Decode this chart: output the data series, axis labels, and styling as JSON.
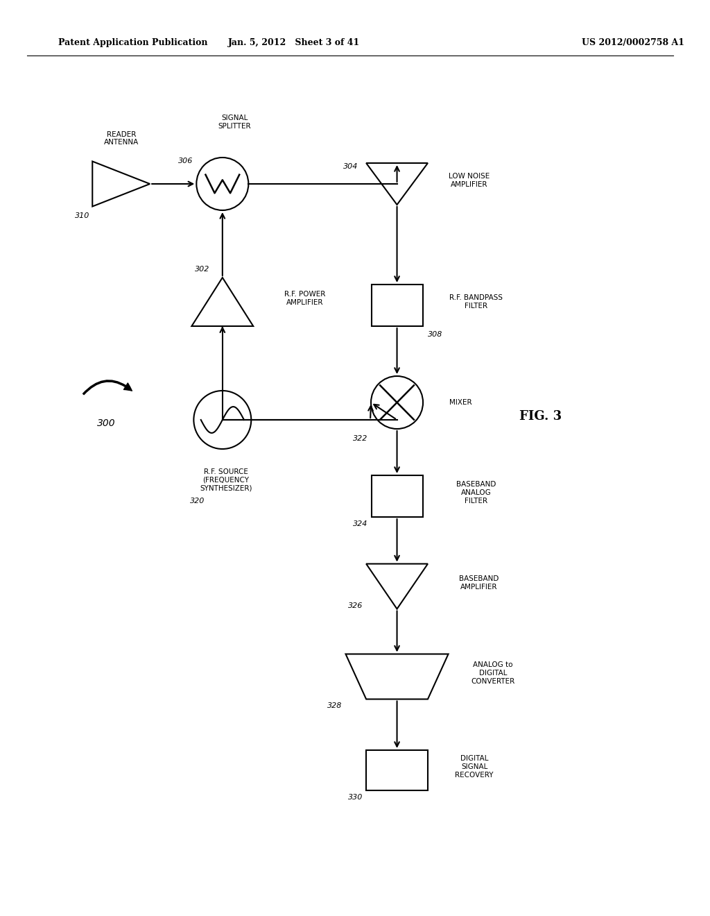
{
  "title_left": "Patent Application Publication",
  "title_center": "Jan. 5, 2012   Sheet 3 of 41",
  "title_right": "US 2012/0002758 A1",
  "fig_label": "FIG. 3",
  "background": "#ffffff",
  "system_label": "300"
}
